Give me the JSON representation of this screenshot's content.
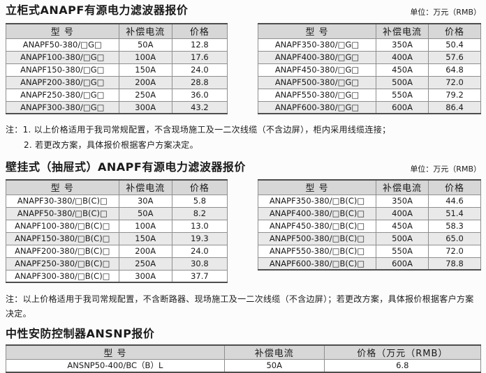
{
  "section1": {
    "title": "立柜式ANAPF有源电力滤波器报价",
    "unit_label": "单位：万元（RMB）",
    "headers": [
      "型 号",
      "补偿电流",
      "价格"
    ],
    "left_table": {
      "rows": [
        [
          "ANAPF50-380/□G□",
          "50A",
          "12.8"
        ],
        [
          "ANAPF100-380/□G□",
          "100A",
          "17.6"
        ],
        [
          "ANAPF150-380/□G□",
          "150A",
          "24.0"
        ],
        [
          "ANAPF200-380/□G□",
          "200A",
          "28.8"
        ],
        [
          "ANAPF250-380/□G□",
          "250A",
          "36.0"
        ],
        [
          "ANAPF300-380/□G□",
          "300A",
          "43.2"
        ]
      ]
    },
    "right_table": {
      "rows": [
        [
          "ANAPF350-380/□G□",
          "350A",
          "50.4"
        ],
        [
          "ANAPF400-380/□G□",
          "400A",
          "57.6"
        ],
        [
          "ANAPF450-380/□G□",
          "450A",
          "64.8"
        ],
        [
          "ANAPF500-380/□G□",
          "500A",
          "72.0"
        ],
        [
          "ANAPF550-380/□G□",
          "550A",
          "79.2"
        ],
        [
          "ANAPF600-380/□G□",
          "600A",
          "86.4"
        ]
      ]
    },
    "notes": [
      "注：1. 以上价格适用于我司常规配置，不含现场施工及一二次线缆（不含边屏），柜内采用线缆连接；",
      "2. 若更改方案，具体报价根据客户方案决定。"
    ]
  },
  "section2": {
    "title": "壁挂式（抽屉式）ANAPF有源电力滤波器报价",
    "unit_label": "单位：万元（RMB）",
    "headers": [
      "型 号",
      "补偿电流",
      "价格"
    ],
    "left_table": {
      "rows": [
        [
          "ANAPF30-380/□B(C)□",
          "30A",
          "5.8"
        ],
        [
          "ANAPF50-380/□B(C)□",
          "50A",
          "8.2"
        ],
        [
          "ANAPF100-380/□B(C)□",
          "100A",
          "13.0"
        ],
        [
          "ANAPF150-380/□B(C)□",
          "150A",
          "19.3"
        ],
        [
          "ANAPF200-380/□B(C)□",
          "200A",
          "24.0"
        ],
        [
          "ANAPF250-380/□B(C)□",
          "250A",
          "30.8"
        ],
        [
          "ANAPF300-380/□B(C)□",
          "300A",
          "37.7"
        ]
      ]
    },
    "right_table": {
      "rows": [
        [
          "ANAPF350-380/□B(C)□",
          "350A",
          "44.6"
        ],
        [
          "ANAPF400-380/□B(C)□",
          "400A",
          "51.4"
        ],
        [
          "ANAPF450-380/□B(C)□",
          "450A",
          "58.3"
        ],
        [
          "ANAPF500-380/□B(C)□",
          "500A",
          "65.0"
        ],
        [
          "ANAPF550-380/□B(C)□",
          "550A",
          "72.0"
        ],
        [
          "ANAPF600-380/□B(C)□",
          "600A",
          "78.8"
        ]
      ]
    },
    "note": "注：以上价格适用于我司常规配置，不含断路器、现场施工及一二次线缆（不含边屏）；若更改方案，具体报价根据客户方案决定。"
  },
  "section3": {
    "title": "中性安防控制器ANSNP报价",
    "headers": [
      "型 号",
      "补偿电流",
      "价格（万元（RMB）"
    ],
    "table": {
      "rows": [
        [
          "ANSNP50-400/BC（B）L",
          "50A",
          "6.8"
        ]
      ]
    }
  }
}
